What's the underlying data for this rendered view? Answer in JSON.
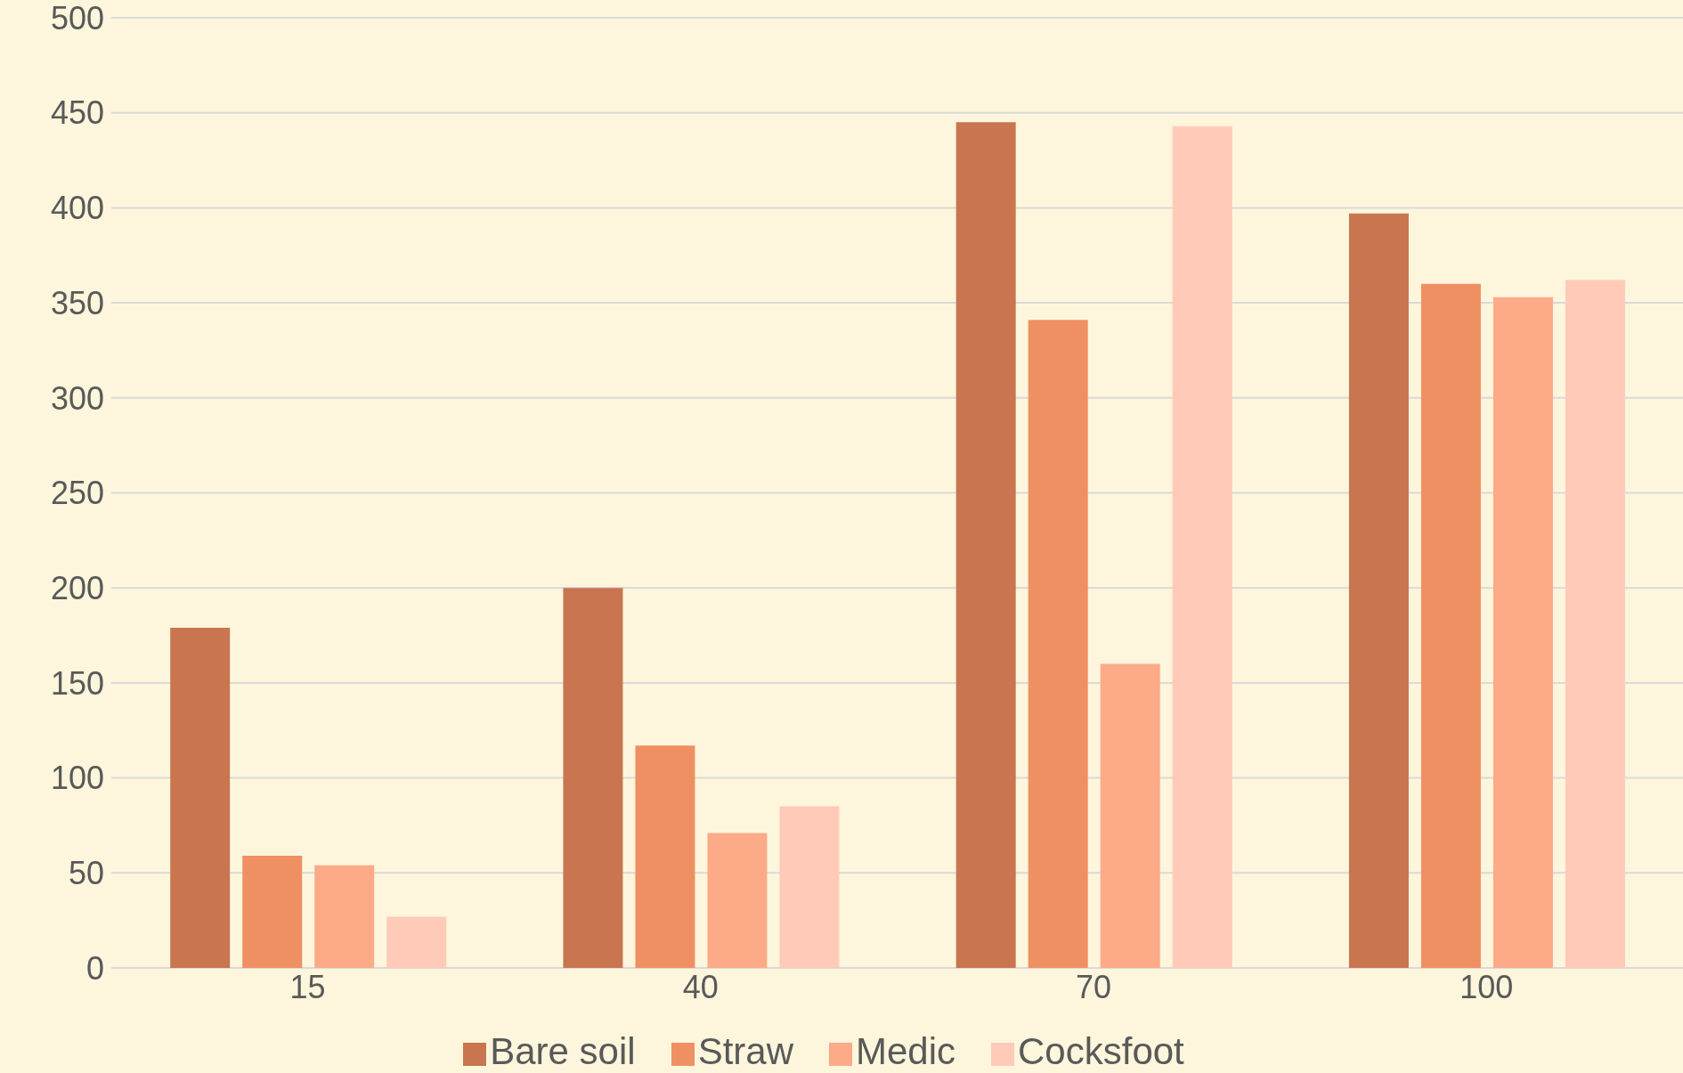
{
  "chart_data": {
    "type": "bar",
    "categories": [
      "15",
      "40",
      "70",
      "100"
    ],
    "series": [
      {
        "name": "Bare soil",
        "color": "#c87550",
        "values": [
          179,
          200,
          445,
          397
        ]
      },
      {
        "name": "Straw",
        "color": "#ef9062",
        "values": [
          59,
          117,
          341,
          360
        ]
      },
      {
        "name": "Medic",
        "color": "#fdaa88",
        "values": [
          54,
          71,
          160,
          353
        ]
      },
      {
        "name": "Cocksfoot",
        "color": "#ffcab8",
        "values": [
          27,
          85,
          443,
          362
        ]
      }
    ],
    "ylim": [
      0,
      500
    ],
    "yticks": [
      0,
      50,
      100,
      150,
      200,
      250,
      300,
      350,
      400,
      450,
      500
    ],
    "grid": "y",
    "legend": "bottom"
  }
}
